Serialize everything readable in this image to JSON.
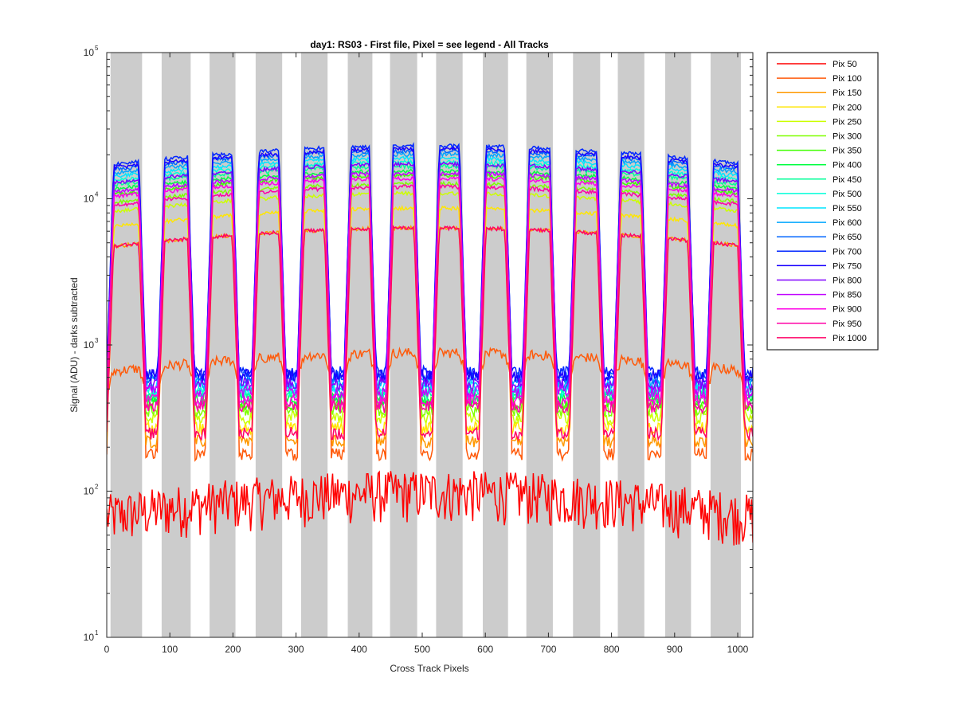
{
  "chart_data": {
    "type": "line",
    "title": "day1: RS03 - First file, Pixel = see legend - All Tracks",
    "xlabel": "Cross Track Pixels",
    "ylabel": "Signal (ADU) - darks subtracted",
    "xlim": [
      0,
      1024
    ],
    "ylim": [
      10,
      100000
    ],
    "yscale": "log",
    "xticks": [
      "0",
      "100",
      "200",
      "300",
      "400",
      "500",
      "600",
      "700",
      "800",
      "900",
      "1000"
    ],
    "yticks": [
      {
        "base": "10",
        "exp": "1"
      },
      {
        "base": "10",
        "exp": "2"
      },
      {
        "base": "10",
        "exp": "3"
      },
      {
        "base": "10",
        "exp": "4"
      },
      {
        "base": "10",
        "exp": "5"
      }
    ],
    "legend_position": "outside-top-right",
    "shaded_bands": [
      [
        6,
        56
      ],
      [
        87,
        133
      ],
      [
        163,
        204
      ],
      [
        236,
        278
      ],
      [
        308,
        350
      ],
      [
        382,
        421
      ],
      [
        449,
        492
      ],
      [
        522,
        564
      ],
      [
        596,
        636
      ],
      [
        665,
        707
      ],
      [
        739,
        782
      ],
      [
        810,
        852
      ],
      [
        885,
        926
      ],
      [
        957,
        1005
      ]
    ],
    "band_color": "#cccccc",
    "series": [
      {
        "name": "Pix 50",
        "color": "#ff0000",
        "plateau": 90,
        "dip": 90,
        "noise": true
      },
      {
        "name": "Pix 100",
        "color": "#ff5a0a",
        "plateau": 700,
        "dip": 180
      },
      {
        "name": "Pix 150",
        "color": "#ff9900",
        "plateau": 5500,
        "dip": 220
      },
      {
        "name": "Pix 200",
        "color": "#ffe600",
        "plateau": 7500,
        "dip": 270
      },
      {
        "name": "Pix 250",
        "color": "#ccff00",
        "plateau": 9500,
        "dip": 320
      },
      {
        "name": "Pix 300",
        "color": "#80ff00",
        "plateau": 11000,
        "dip": 360
      },
      {
        "name": "Pix 350",
        "color": "#40ff00",
        "plateau": 12500,
        "dip": 400
      },
      {
        "name": "Pix 400",
        "color": "#00ff40",
        "plateau": 13500,
        "dip": 430
      },
      {
        "name": "Pix 450",
        "color": "#00ff99",
        "plateau": 14500,
        "dip": 460
      },
      {
        "name": "Pix 500",
        "color": "#00ffd9",
        "plateau": 15500,
        "dip": 490
      },
      {
        "name": "Pix 550",
        "color": "#00e6ff",
        "plateau": 16500,
        "dip": 520
      },
      {
        "name": "Pix 600",
        "color": "#00a6ff",
        "plateau": 17500,
        "dip": 560
      },
      {
        "name": "Pix 650",
        "color": "#0066ff",
        "plateau": 18500,
        "dip": 600
      },
      {
        "name": "Pix 700",
        "color": "#0026ff",
        "plateau": 20000,
        "dip": 650
      },
      {
        "name": "Pix 750",
        "color": "#1a00ff",
        "plateau": 19000,
        "dip": 620
      },
      {
        "name": "Pix 800",
        "color": "#8000ff",
        "plateau": 15000,
        "dip": 540
      },
      {
        "name": "Pix 850",
        "color": "#c000ff",
        "plateau": 13000,
        "dip": 480
      },
      {
        "name": "Pix 900",
        "color": "#ff00e6",
        "plateau": 12000,
        "dip": 420
      },
      {
        "name": "Pix 950",
        "color": "#ff00a6",
        "plateau": 10500,
        "dip": 380
      },
      {
        "name": "Pix 1000",
        "color": "#ff0066",
        "plateau": 5500,
        "dip": 250
      }
    ]
  }
}
